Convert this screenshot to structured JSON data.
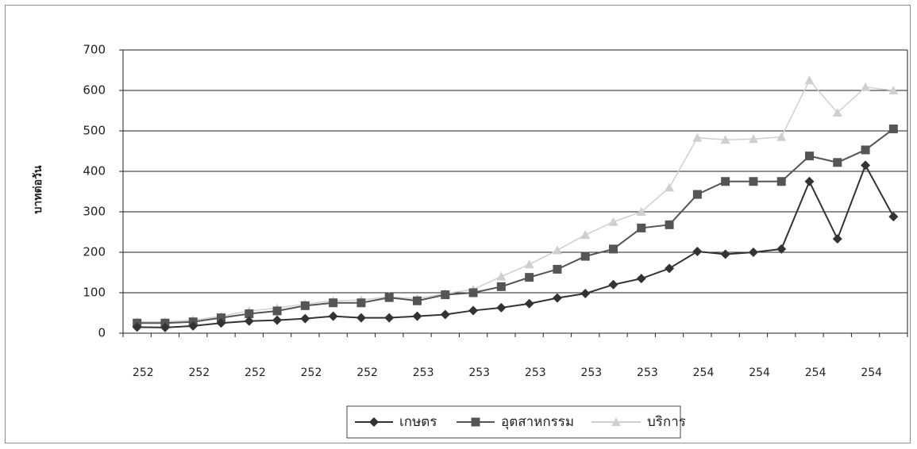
{
  "chart_data": {
    "type": "line",
    "title": "",
    "xlabel": "",
    "ylabel": "บาทต่อวัน",
    "ylim": [
      0,
      700
    ],
    "yticks": [
      0,
      100,
      200,
      300,
      400,
      500,
      600,
      700
    ],
    "grid": true,
    "legend_position": "bottom",
    "x_tick_labels": [
      "252",
      "252",
      "252",
      "252",
      "252",
      "253",
      "253",
      "253",
      "253",
      "253",
      "254",
      "254",
      "254",
      "254"
    ],
    "series": [
      {
        "name": "เกษตร",
        "marker": "diamond",
        "color": "#333333",
        "values": [
          15,
          14,
          18,
          25,
          30,
          32,
          36,
          42,
          38,
          38,
          42,
          46,
          56,
          63,
          73,
          87,
          98,
          120,
          135,
          160,
          202,
          195,
          200,
          208,
          375,
          233,
          415,
          288
        ]
      },
      {
        "name": "อุตสาหกรรม",
        "marker": "square",
        "color": "#555555",
        "values": [
          25,
          25,
          28,
          38,
          48,
          55,
          68,
          75,
          75,
          88,
          80,
          95,
          100,
          115,
          138,
          158,
          190,
          208,
          260,
          268,
          343,
          375,
          375,
          375,
          438,
          422,
          453,
          505
        ]
      },
      {
        "name": "บริการ",
        "marker": "triangle",
        "color": "#cfcfcf",
        "values": [
          28,
          28,
          32,
          42,
          55,
          62,
          72,
          80,
          82,
          90,
          85,
          98,
          108,
          140,
          170,
          205,
          243,
          275,
          300,
          360,
          483,
          478,
          480,
          485,
          625,
          545,
          608,
          600
        ]
      }
    ]
  }
}
